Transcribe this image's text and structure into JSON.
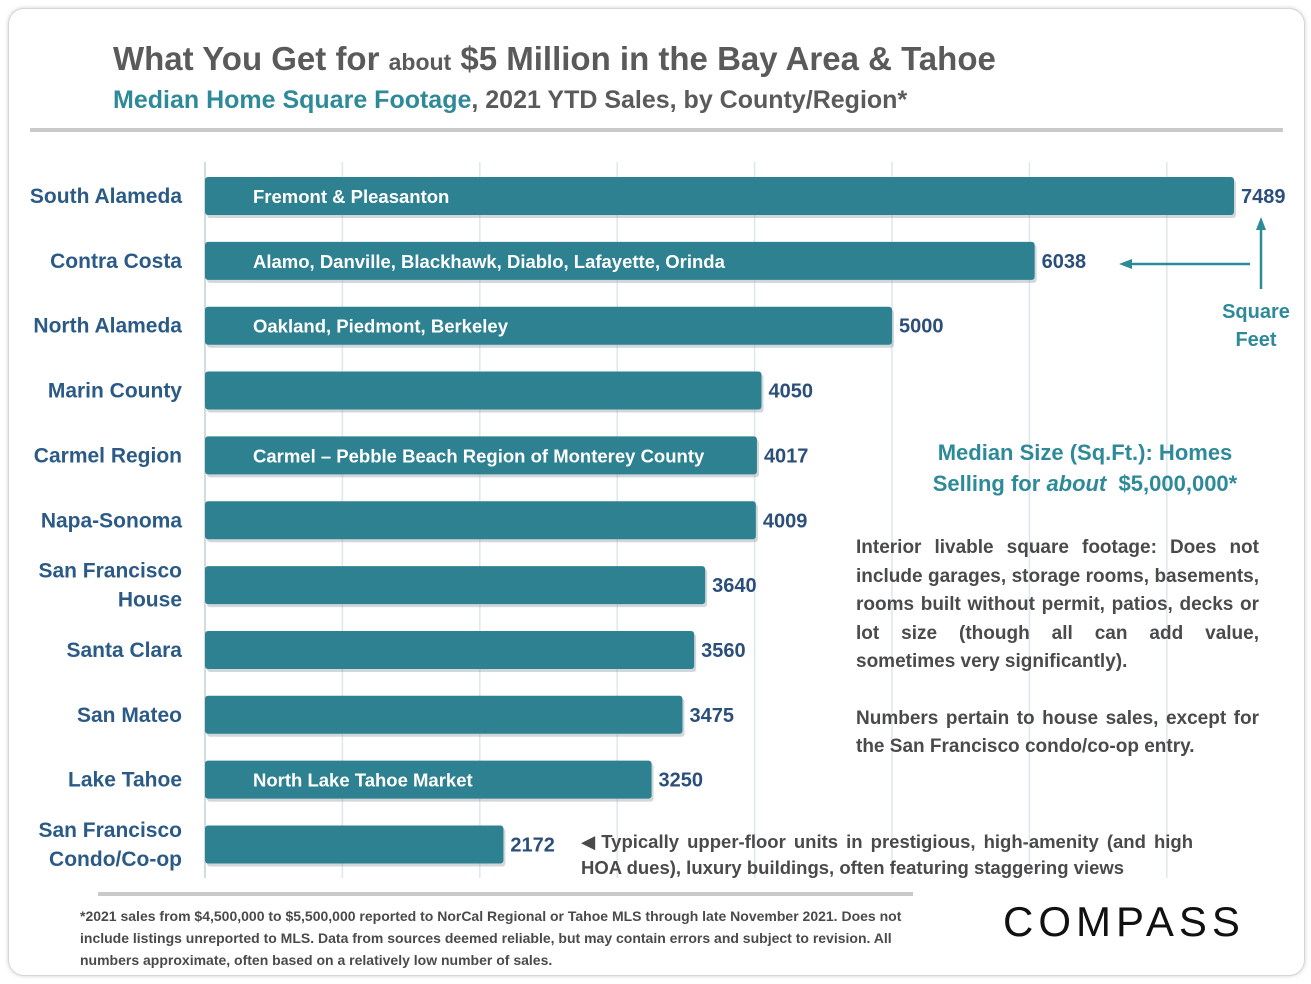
{
  "header": {
    "title_part1": "What You Get for ",
    "title_small": "about",
    "title_part2": " $5 Million in the Bay Area & Tahoe",
    "subtitle_highlight": "Median Home Square Footage",
    "subtitle_rest": ", 2021 YTD Sales, by County/Region*"
  },
  "colors": {
    "bar": "#2e8191",
    "accent": "#2e8a98",
    "label": "#2b5a87",
    "value": "#2b4f7a",
    "text": "#4a4a4a",
    "grid": "#dde7ee"
  },
  "chart_data": {
    "type": "bar",
    "orientation": "horizontal",
    "categories": [
      "South Alameda",
      "Contra Costa",
      "North Alameda",
      "Marin County",
      "Carmel Region",
      "Napa-Sonoma",
      "San Francisco House",
      "Santa Clara",
      "San Mateo",
      "Lake Tahoe",
      "San Francisco Condo/Co-op"
    ],
    "category_lines": [
      [
        "South Alameda"
      ],
      [
        "Contra Costa"
      ],
      [
        "North Alameda"
      ],
      [
        "Marin County"
      ],
      [
        "Carmel Region"
      ],
      [
        "Napa-Sonoma"
      ],
      [
        "San Francisco",
        "House"
      ],
      [
        "Santa Clara"
      ],
      [
        "San Mateo"
      ],
      [
        "Lake Tahoe"
      ],
      [
        "San Francisco",
        "Condo/Co-op"
      ]
    ],
    "values": [
      7489,
      6038,
      5000,
      4050,
      4017,
      4009,
      3640,
      3560,
      3475,
      3250,
      2172
    ],
    "bar_text": [
      "Fremont & Pleasanton",
      "Alamo, Danville, Blackhawk, Diablo, Lafayette, Orinda",
      "Oakland, Piedmont, Berkeley",
      "",
      "Carmel – Pebble Beach Region of Monterey County",
      "",
      "",
      "",
      "",
      "North Lake Tahoe Market",
      ""
    ],
    "xlim": [
      0,
      7500
    ],
    "grid": true,
    "unit_label": [
      "Square",
      "Feet"
    ]
  },
  "annotations": {
    "side_title_line1": "Median Size (Sq.Ft.): Homes",
    "side_title_pre": "Selling for ",
    "side_title_em": "about",
    "side_title_post": "  $5,000,000*",
    "side_note_1": "Interior livable square footage:  Does not include garages, storage rooms, basements, rooms built without permit, patios, decks or lot size (though all can add value, sometimes very significantly).",
    "side_note_2": "Numbers pertain to house sales, except for the San Francisco condo/co-op entry.",
    "condo_note_marker": "◀",
    "condo_note": "Typically upper-floor units in prestigious, high-amenity (and high HOA dues), luxury buildings, often featuring staggering views"
  },
  "footnote": "*2021 sales from $4,500,000 to $5,500,000 reported to NorCal Regional or Tahoe MLS through late November 2021. Does not include listings unreported to MLS. Data from sources deemed reliable, but may contain errors and subject to revision. All numbers approximate, often based on a relatively low number of sales.",
  "logo": "COMPASS"
}
